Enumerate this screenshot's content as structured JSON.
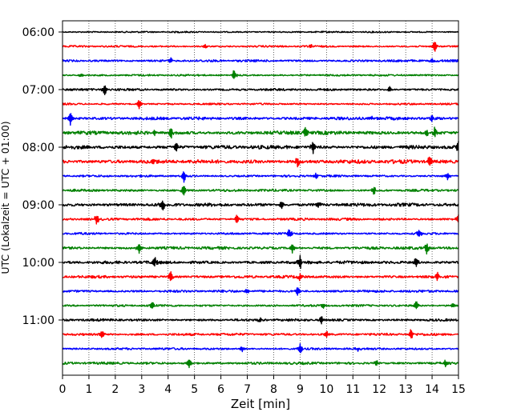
{
  "chart_data": {
    "type": "line",
    "title": "",
    "xlabel": "Zeit  [min]",
    "ylabel": "UTC (Lokalzeit = UTC + 01:00)",
    "xlim": [
      0,
      15
    ],
    "xticks": [
      "0",
      "1",
      "2",
      "3",
      "4",
      "5",
      "6",
      "7",
      "8",
      "9",
      "10",
      "11",
      "12",
      "13",
      "14",
      "15"
    ],
    "yticks": [
      "06:00",
      "07:00",
      "08:00",
      "09:00",
      "10:00",
      "11:00"
    ],
    "grid": "vertical-dotted",
    "colors": [
      "#000000",
      "#ff0000",
      "#0000ff",
      "#008000"
    ],
    "series": [
      {
        "row_start": "06:00",
        "color": "#000000",
        "noise": 1.0,
        "spikes": []
      },
      {
        "row_start": "06:15",
        "color": "#ff0000",
        "noise": 1.2,
        "spikes": [
          [
            5.4,
            3
          ],
          [
            9.4,
            3
          ],
          [
            14.1,
            9
          ]
        ]
      },
      {
        "row_start": "06:30",
        "color": "#0000ff",
        "noise": 1.5,
        "spikes": [
          [
            4.1,
            4
          ],
          [
            14.0,
            3
          ]
        ]
      },
      {
        "row_start": "06:45",
        "color": "#008000",
        "noise": 1.2,
        "spikes": [
          [
            0.7,
            3
          ],
          [
            6.5,
            8
          ]
        ]
      },
      {
        "row_start": "07:00",
        "color": "#000000",
        "noise": 1.5,
        "spikes": [
          [
            1.6,
            8
          ],
          [
            12.4,
            4
          ]
        ]
      },
      {
        "row_start": "07:15",
        "color": "#ff0000",
        "noise": 1.2,
        "spikes": [
          [
            2.9,
            7
          ]
        ]
      },
      {
        "row_start": "07:30",
        "color": "#0000ff",
        "noise": 2.0,
        "spikes": [
          [
            0.3,
            9
          ],
          [
            11.7,
            3
          ],
          [
            14.0,
            4
          ]
        ]
      },
      {
        "row_start": "07:45",
        "color": "#008000",
        "noise": 2.4,
        "spikes": [
          [
            3.5,
            4
          ],
          [
            4.1,
            8
          ],
          [
            9.2,
            8
          ],
          [
            13.8,
            5
          ],
          [
            14.1,
            7
          ]
        ]
      },
      {
        "row_start": "08:00",
        "color": "#000000",
        "noise": 2.4,
        "spikes": [
          [
            4.3,
            8
          ],
          [
            8.5,
            3
          ],
          [
            9.5,
            9
          ],
          [
            15.0,
            8
          ]
        ]
      },
      {
        "row_start": "08:15",
        "color": "#ff0000",
        "noise": 2.6,
        "spikes": [
          [
            3.4,
            3
          ],
          [
            8.9,
            7
          ],
          [
            13.9,
            8
          ]
        ]
      },
      {
        "row_start": "08:30",
        "color": "#0000ff",
        "noise": 1.4,
        "spikes": [
          [
            4.6,
            9
          ],
          [
            9.6,
            4
          ],
          [
            14.6,
            6
          ]
        ]
      },
      {
        "row_start": "08:45",
        "color": "#008000",
        "noise": 1.6,
        "spikes": [
          [
            4.6,
            8
          ],
          [
            11.8,
            6
          ]
        ]
      },
      {
        "row_start": "09:00",
        "color": "#000000",
        "noise": 2.2,
        "spikes": [
          [
            3.8,
            9
          ],
          [
            8.3,
            6
          ],
          [
            9.7,
            4
          ]
        ]
      },
      {
        "row_start": "09:15",
        "color": "#ff0000",
        "noise": 1.6,
        "spikes": [
          [
            1.3,
            8
          ],
          [
            6.6,
            7
          ],
          [
            15.0,
            7
          ]
        ]
      },
      {
        "row_start": "09:30",
        "color": "#0000ff",
        "noise": 1.4,
        "spikes": [
          [
            8.6,
            7
          ],
          [
            13.5,
            6
          ],
          [
            0.6,
            2
          ]
        ]
      },
      {
        "row_start": "09:45",
        "color": "#008000",
        "noise": 1.8,
        "spikes": [
          [
            2.9,
            7
          ],
          [
            8.7,
            7
          ],
          [
            13.8,
            8
          ]
        ]
      },
      {
        "row_start": "10:00",
        "color": "#000000",
        "noise": 2.0,
        "spikes": [
          [
            3.5,
            6
          ],
          [
            9.0,
            10
          ],
          [
            13.4,
            8
          ]
        ]
      },
      {
        "row_start": "10:15",
        "color": "#ff0000",
        "noise": 1.8,
        "spikes": [
          [
            4.1,
            7
          ],
          [
            9.0,
            5
          ],
          [
            14.2,
            7
          ]
        ]
      },
      {
        "row_start": "10:30",
        "color": "#0000ff",
        "noise": 1.6,
        "spikes": [
          [
            8.9,
            6
          ],
          [
            7.0,
            3
          ]
        ]
      },
      {
        "row_start": "10:45",
        "color": "#008000",
        "noise": 1.4,
        "spikes": [
          [
            3.4,
            6
          ],
          [
            9.9,
            4
          ],
          [
            13.4,
            6
          ],
          [
            14.8,
            4
          ]
        ]
      },
      {
        "row_start": "11:00",
        "color": "#000000",
        "noise": 1.6,
        "spikes": [
          [
            9.8,
            7
          ],
          [
            7.5,
            3
          ]
        ]
      },
      {
        "row_start": "11:15",
        "color": "#ff0000",
        "noise": 1.6,
        "spikes": [
          [
            1.5,
            6
          ],
          [
            10.0,
            5
          ],
          [
            13.2,
            8
          ]
        ]
      },
      {
        "row_start": "11:30",
        "color": "#0000ff",
        "noise": 1.4,
        "spikes": [
          [
            6.8,
            4
          ],
          [
            9.0,
            7
          ],
          [
            11.2,
            3
          ]
        ]
      },
      {
        "row_start": "11:45",
        "color": "#008000",
        "noise": 1.6,
        "spikes": [
          [
            4.8,
            6
          ],
          [
            11.9,
            4
          ],
          [
            14.5,
            6
          ]
        ]
      }
    ]
  }
}
